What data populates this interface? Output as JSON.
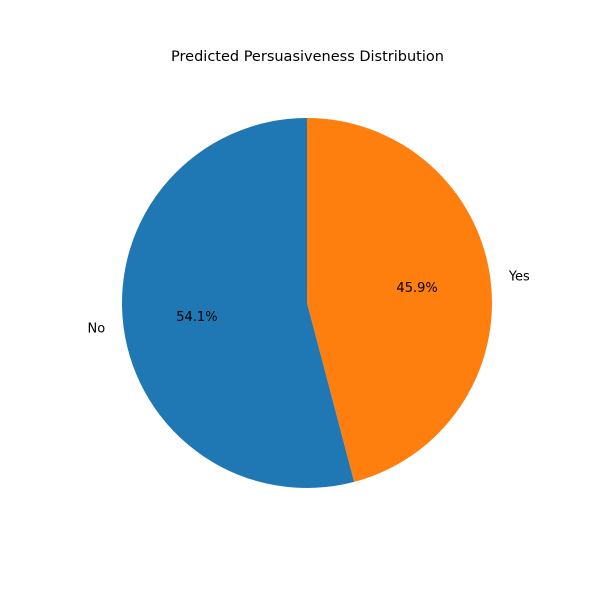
{
  "chart_data": {
    "type": "pie",
    "title": "Predicted Persuasiveness Distribution",
    "start_angle_deg": 90,
    "direction": "clockwise",
    "slices": [
      {
        "label": "Yes",
        "value": 45.9,
        "pct_label": "45.9%",
        "color": "#ff7f0e"
      },
      {
        "label": "No",
        "value": 54.1,
        "pct_label": "54.1%",
        "color": "#1f77b4"
      }
    ],
    "legend": "none"
  }
}
